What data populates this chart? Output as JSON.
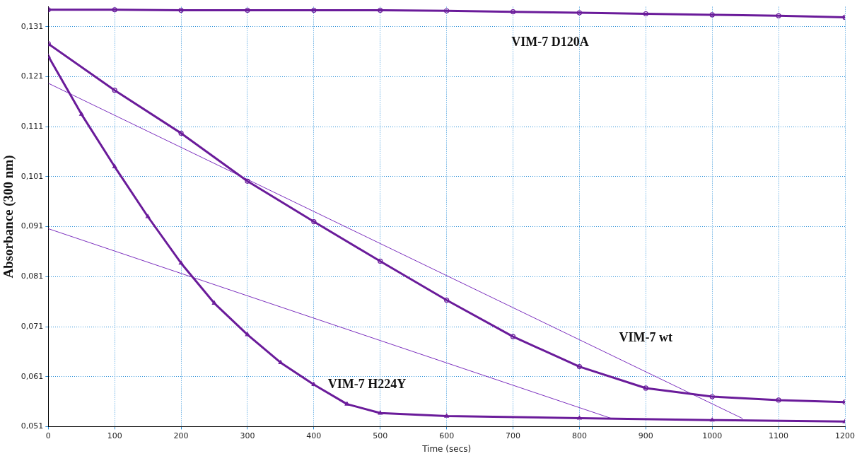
{
  "chart_data": {
    "type": "line",
    "xlabel": "Time (secs)",
    "ylabel": "Absorbance (300 nm)",
    "xlim": [
      0,
      1200
    ],
    "xticks": [
      0,
      100,
      200,
      300,
      400,
      500,
      600,
      700,
      800,
      900,
      1000,
      1100,
      1200
    ],
    "ylim": [
      0.051,
      0.135
    ],
    "yticks": [
      {
        "value": 0.051,
        "label": "0,051"
      },
      {
        "value": 0.061,
        "label": "0,061"
      },
      {
        "value": 0.071,
        "label": "0,071"
      },
      {
        "value": 0.081,
        "label": "0,081"
      },
      {
        "value": 0.091,
        "label": "0,091"
      },
      {
        "value": 0.101,
        "label": "0,101"
      },
      {
        "value": 0.111,
        "label": "0,111"
      },
      {
        "value": 0.121,
        "label": "0,121"
      },
      {
        "value": 0.131,
        "label": "0,131"
      }
    ],
    "grid": true,
    "legend": false,
    "line_style": "solid",
    "series": [
      {
        "name": "VIM-7 D120A",
        "color": "#6a1b9a",
        "marker": "circle",
        "x": [
          0,
          100,
          200,
          300,
          400,
          500,
          600,
          700,
          800,
          900,
          1000,
          1100,
          1200
        ],
        "values": [
          0.1344,
          0.1344,
          0.1343,
          0.1343,
          0.1343,
          0.1343,
          0.1342,
          0.134,
          0.1338,
          0.1336,
          0.1334,
          0.1332,
          0.1329
        ]
      },
      {
        "name": "VIM-7 wt",
        "color": "#6a1b9a",
        "marker": "circle",
        "x": [
          0,
          100,
          200,
          300,
          400,
          500,
          600,
          700,
          800,
          900,
          1000,
          1100,
          1200
        ],
        "values": [
          0.1276,
          0.1183,
          0.1097,
          0.1001,
          0.092,
          0.0841,
          0.0763,
          0.069,
          0.063,
          0.0587,
          0.057,
          0.0563,
          0.0559
        ]
      },
      {
        "name": "VIM-7 H224Y",
        "color": "#6a1b9a",
        "marker": "triangle",
        "x": [
          0,
          50,
          100,
          150,
          200,
          250,
          300,
          350,
          400,
          450,
          500,
          600,
          800,
          1000,
          1200
        ],
        "values": [
          0.1251,
          0.1135,
          0.103,
          0.093,
          0.0837,
          0.0757,
          0.0694,
          0.0638,
          0.0594,
          0.0555,
          0.0537,
          0.0531,
          0.0527,
          0.0523,
          0.052
        ]
      },
      {
        "type": "line",
        "color": "#7b2fbe",
        "marker": "none",
        "x": [
          0,
          1046
        ],
        "values": [
          0.1197,
          0.0526
        ]
      },
      {
        "type": "line",
        "color": "#7b2fbe",
        "marker": "none",
        "x": [
          0,
          849
        ],
        "values": [
          0.0906,
          0.0526
        ]
      }
    ]
  }
}
